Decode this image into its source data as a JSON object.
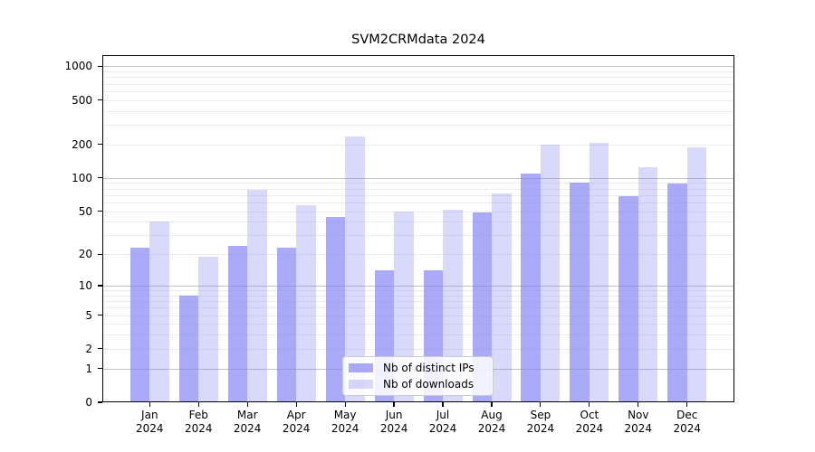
{
  "title": "SVM2CRMdata 2024",
  "legend": {
    "items": [
      {
        "label": "Nb of distinct IPs",
        "color": "#8282f6",
        "alpha": 0.68
      },
      {
        "label": "Nb of downloads",
        "color": "#8282f6",
        "alpha": 0.3
      }
    ]
  },
  "chart_data": {
    "type": "bar",
    "title": "SVM2CRMdata 2024",
    "categories": [
      "Jan",
      "Feb",
      "Mar",
      "Apr",
      "May",
      "Jun",
      "Jul",
      "Aug",
      "Sep",
      "Oct",
      "Nov",
      "Dec"
    ],
    "category_year": "2024",
    "series": [
      {
        "name": "Nb of distinct IPs",
        "color": "#8282f6",
        "alpha": 0.68,
        "values": [
          23,
          8,
          24,
          23,
          44,
          14,
          14,
          49,
          110,
          91,
          68,
          89
        ]
      },
      {
        "name": "Nb of downloads",
        "color": "#8282f6",
        "alpha": 0.3,
        "values": [
          40,
          19,
          78,
          57,
          234,
          50,
          52,
          73,
          200,
          205,
          125,
          189
        ]
      }
    ],
    "yscale": "log1p",
    "ylim": [
      0,
      1260
    ],
    "yticks": [
      0,
      1,
      2,
      5,
      10,
      20,
      50,
      100,
      200,
      500,
      1000
    ],
    "grid": {
      "major_values": [
        1,
        10,
        100,
        1000
      ],
      "minor_values": [
        2,
        3,
        4,
        5,
        6,
        7,
        8,
        9,
        20,
        30,
        40,
        50,
        60,
        70,
        80,
        90,
        200,
        300,
        400,
        500,
        600,
        700,
        800,
        900
      ],
      "major_color": "#c2c2c2",
      "minor_color": "#ececec"
    },
    "legend_position": "lower center",
    "bar_group": "paired side-by-side per month"
  }
}
